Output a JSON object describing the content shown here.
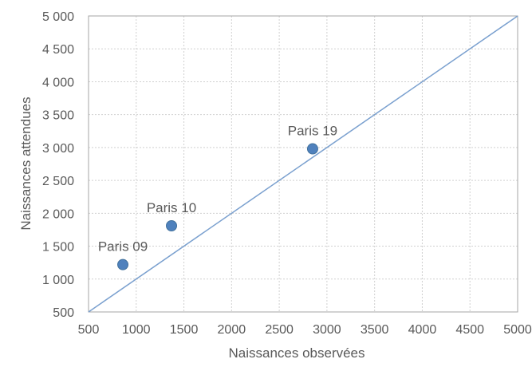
{
  "chart_data": {
    "type": "scatter",
    "title": "",
    "xlabel": "Naissances observées",
    "ylabel": "Naissances attendues",
    "xlim": [
      500,
      5000
    ],
    "ylim": [
      500,
      5000
    ],
    "x_ticks": [
      500,
      1000,
      1500,
      2000,
      2500,
      3000,
      3500,
      4000,
      4500,
      5000
    ],
    "x_tick_labels": [
      "500",
      "1000",
      "1500",
      "2000",
      "2500",
      "3000",
      "3500",
      "4000",
      "4500",
      "5000"
    ],
    "y_ticks": [
      500,
      1000,
      1500,
      2000,
      2500,
      3000,
      3500,
      4000,
      4500,
      5000
    ],
    "y_tick_labels": [
      "500",
      "1 000",
      "1 500",
      "2 000",
      "2 500",
      "3 000",
      "3 500",
      "4 000",
      "4 500",
      "5 000"
    ],
    "grid": true,
    "points": [
      {
        "label": "Paris 09",
        "x": 860,
        "y": 1220
      },
      {
        "label": "Paris 10",
        "x": 1370,
        "y": 1810
      },
      {
        "label": "Paris 19",
        "x": 2850,
        "y": 2980
      }
    ],
    "reference_line": {
      "x": [
        500,
        5000
      ],
      "y": [
        500,
        5000
      ]
    },
    "colors": {
      "points": "#4f81bd",
      "line": "#7aa0cf",
      "grid": "#d0d0d0",
      "axis": "#a6a6a6",
      "text": "#595959"
    }
  }
}
